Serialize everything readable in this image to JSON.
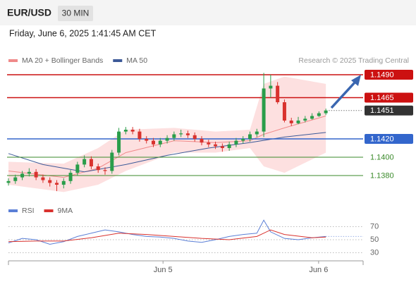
{
  "header": {
    "symbol": "EUR/USD",
    "interval": "30 MIN",
    "datetime": "Friday, June 6, 2025 1:41:45 AM CET",
    "credit": "Research © 2025 Trading Central"
  },
  "chart_data": [
    {
      "type": "candlestick",
      "x": [
        0,
        1,
        2,
        3,
        4,
        5,
        6,
        7,
        8,
        9,
        10,
        11,
        12,
        13,
        14,
        15,
        16,
        17,
        18,
        19,
        20,
        21,
        22,
        23,
        24,
        25,
        26,
        27,
        28,
        29,
        30,
        31,
        32,
        33,
        34,
        35,
        36,
        37,
        38,
        39,
        40,
        41,
        42,
        43,
        44,
        45,
        46
      ],
      "open": [
        1.1372,
        1.1374,
        1.1378,
        1.1382,
        1.1384,
        1.1378,
        1.1375,
        1.1372,
        1.137,
        1.1374,
        1.1383,
        1.1392,
        1.1398,
        1.139,
        1.1386,
        1.1385,
        1.1405,
        1.1428,
        1.143,
        1.1428,
        1.142,
        1.1418,
        1.1414,
        1.1418,
        1.1421,
        1.1425,
        1.1426,
        1.1424,
        1.142,
        1.1416,
        1.1414,
        1.1412,
        1.141,
        1.1414,
        1.1418,
        1.142,
        1.1425,
        1.1428,
        1.1475,
        1.1478,
        1.146,
        1.144,
        1.1437,
        1.144,
        1.1442,
        1.1445,
        1.1448
      ],
      "high": [
        1.1377,
        1.1381,
        1.1385,
        1.1388,
        1.1387,
        1.1381,
        1.1378,
        1.1375,
        1.1377,
        1.1386,
        1.1395,
        1.1402,
        1.1401,
        1.1393,
        1.1389,
        1.1408,
        1.1432,
        1.1433,
        1.1433,
        1.1431,
        1.1423,
        1.1421,
        1.1421,
        1.1424,
        1.1428,
        1.143,
        1.1429,
        1.1427,
        1.1423,
        1.1419,
        1.1417,
        1.1415,
        1.1417,
        1.1421,
        1.1423,
        1.1428,
        1.1431,
        1.1492,
        1.149,
        1.1482,
        1.1463,
        1.1443,
        1.1444,
        1.1445,
        1.1448,
        1.145,
        1.1453
      ],
      "low": [
        1.1369,
        1.1371,
        1.1375,
        1.1379,
        1.1375,
        1.1372,
        1.1368,
        1.1363,
        1.1366,
        1.1371,
        1.138,
        1.1389,
        1.1387,
        1.1383,
        1.1381,
        1.1382,
        1.1402,
        1.1425,
        1.1425,
        1.1417,
        1.1415,
        1.1411,
        1.1411,
        1.1415,
        1.1418,
        1.1422,
        1.1421,
        1.1417,
        1.1413,
        1.1411,
        1.1409,
        1.1406,
        1.1407,
        1.1411,
        1.1415,
        1.1417,
        1.1422,
        1.1422,
        1.1465,
        1.1458,
        1.1438,
        1.1434,
        1.1436,
        1.1438,
        1.1441,
        1.1444,
        1.1446
      ],
      "close": [
        1.1374,
        1.1378,
        1.1382,
        1.1384,
        1.1378,
        1.1375,
        1.1372,
        1.137,
        1.1374,
        1.1383,
        1.1392,
        1.1398,
        1.139,
        1.1386,
        1.1385,
        1.1405,
        1.1428,
        1.143,
        1.1428,
        1.142,
        1.1418,
        1.1414,
        1.1418,
        1.1421,
        1.1425,
        1.1426,
        1.1424,
        1.142,
        1.1416,
        1.1414,
        1.1412,
        1.141,
        1.1414,
        1.1418,
        1.142,
        1.1425,
        1.1428,
        1.1475,
        1.1478,
        1.146,
        1.144,
        1.1437,
        1.144,
        1.1442,
        1.1445,
        1.1448,
        1.1451
      ],
      "up_color": "#2a9d4a",
      "down_color": "#d9322e",
      "xlim": [
        0,
        51.4
      ],
      "ylim": [
        1.1356,
        1.1498
      ],
      "series": [
        {
          "name": "MA 20 + Bollinger Bands",
          "color": "#f08a8a",
          "band_color": "#fde0e0",
          "x": [
            0,
            8,
            13,
            17,
            24,
            30,
            35,
            37,
            40,
            46
          ],
          "values": [
            1.1385,
            1.1378,
            1.1388,
            1.1405,
            1.1418,
            1.1416,
            1.1418,
            1.1425,
            1.1432,
            1.1445
          ],
          "upper": [
            1.1395,
            1.1393,
            1.141,
            1.143,
            1.1432,
            1.1428,
            1.143,
            1.148,
            1.1488,
            1.148
          ],
          "lower": [
            1.137,
            1.1362,
            1.137,
            1.1385,
            1.1405,
            1.1405,
            1.141,
            1.139,
            1.1383,
            1.1405
          ]
        },
        {
          "name": "MA 50",
          "color": "#3d5a98",
          "x": [
            0,
            5,
            11,
            17,
            23,
            29,
            35,
            40,
            46
          ],
          "values": [
            1.1404,
            1.1392,
            1.1384,
            1.1392,
            1.1402,
            1.141,
            1.1416,
            1.1422,
            1.1427
          ]
        }
      ],
      "levels": [
        {
          "value": 1.149,
          "label": "1.1490",
          "color": "#cc1111",
          "boxed": true
        },
        {
          "value": 1.1465,
          "label": "1.1465",
          "color": "#cc1111",
          "boxed": true
        },
        {
          "value": 1.1451,
          "label": "1.1451",
          "color": "#333333",
          "boxed": true
        },
        {
          "value": 1.142,
          "label": "1.1420",
          "color": "#3366cc",
          "boxed": true
        },
        {
          "value": 1.14,
          "label": "1.1400",
          "color": "#3a8a2a",
          "boxed": false
        },
        {
          "value": 1.138,
          "label": "1.1380",
          "color": "#3a8a2a",
          "boxed": false
        }
      ]
    },
    {
      "type": "line",
      "xlim": [
        0,
        51.4
      ],
      "ylim": [
        20,
        85
      ],
      "yticks": [
        30,
        50,
        70
      ],
      "grid": true,
      "xticks": [
        {
          "value": 22.4,
          "label": "Jun 5"
        },
        {
          "value": 44.95,
          "label": "Jun 6"
        }
      ],
      "series": [
        {
          "name": "RSI",
          "color": "#5b7fd6",
          "x": [
            0,
            2,
            4,
            6,
            8,
            10,
            12,
            14,
            16,
            18,
            20,
            22,
            24,
            26,
            28,
            30,
            32,
            34,
            36,
            37,
            38,
            40,
            42,
            44,
            46
          ],
          "values": [
            45,
            52,
            50,
            43,
            47,
            55,
            60,
            65,
            62,
            58,
            55,
            54,
            52,
            48,
            46,
            50,
            55,
            58,
            60,
            80,
            62,
            52,
            50,
            53,
            55
          ]
        },
        {
          "name": "9MA",
          "color": "#d9322e",
          "x": [
            0,
            4,
            8,
            12,
            16,
            20,
            24,
            28,
            32,
            36,
            38,
            40,
            44,
            46
          ],
          "values": [
            47,
            48,
            48,
            53,
            60,
            58,
            55,
            52,
            50,
            55,
            65,
            58,
            53,
            54
          ]
        }
      ]
    }
  ]
}
